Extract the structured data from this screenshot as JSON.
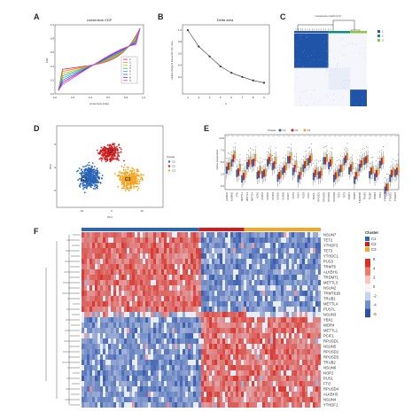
{
  "panels": {
    "A": {
      "letter": "A",
      "title": "consensus CDF",
      "xlabel": "consensus index",
      "ylabel": "CDF",
      "ticks_x": [
        "0.0",
        "0.2",
        "0.4",
        "0.6",
        "0.8",
        "1.0"
      ],
      "ticks_y": [
        "0.0",
        "0.2",
        "0.4",
        "0.6",
        "0.8",
        "1.0"
      ],
      "legend": [
        "2",
        "3",
        "4",
        "5",
        "6",
        "7",
        "8",
        "9"
      ],
      "colors": [
        "#e6194b",
        "#f58231",
        "#bcbd22",
        "#3cb44b",
        "#17becf",
        "#4363d8",
        "#911eb4",
        "#f032e6"
      ]
    },
    "B": {
      "letter": "B",
      "title": "Delta area",
      "xlabel": "k",
      "ylabel": "relative change in area under CDF curve",
      "ticks_x": [
        "2",
        "3",
        "4",
        "5",
        "6",
        "7",
        "8",
        "9"
      ],
      "ticks_y": [
        "0.2",
        "0.4",
        "0.6",
        "0.8",
        "1.0"
      ]
    },
    "C": {
      "letter": "C",
      "title": "consensus matrix k=3",
      "legend": [
        "1",
        "2",
        "3"
      ],
      "colors": [
        "#2457a6",
        "#0e8f7e",
        "#8cc63f"
      ]
    },
    "D": {
      "letter": "D",
      "xlabel": "PC1",
      "ylabel": "PC2",
      "legend_title": "Cluster",
      "legend": [
        "C1",
        "C2",
        "C3"
      ],
      "colors": [
        "#2a65b7",
        "#d7191c",
        "#f5a623"
      ],
      "cluster_labels": [
        "C2",
        "C1",
        "C3"
      ],
      "ticks_x": [
        "-10",
        "0",
        "10"
      ],
      "ticks_y": [
        "-5",
        "0",
        "5"
      ]
    },
    "E": {
      "letter": "E",
      "legend_title": "Cluster",
      "legend": [
        "C1",
        "C2",
        "C3"
      ],
      "ylabel": "Gene expression",
      "ticks_y": [
        "0.0",
        "2.5",
        "5.0",
        "7.5",
        "10.0"
      ],
      "genes": [
        "ALKBH1",
        "ALKBH3",
        "FTO",
        "METTL1",
        "METTL3",
        "METTL4",
        "NOP2",
        "NSUN2",
        "NSUN3",
        "NSUN4",
        "NSUN5",
        "NSUN6",
        "NSUN7",
        "PCIF1",
        "PUS1",
        "PUS3",
        "PUS7",
        "PUS7L",
        "RPUSD1",
        "RPUSD2",
        "RPUSD3",
        "RPUSD4",
        "TET2",
        "TET3",
        "TRMT1",
        "TRMT6",
        "TRMT61B",
        "TRUB1",
        "TRUB2",
        "WDR4",
        "YBX1",
        "YTHDC1",
        "YTHDF1",
        "YTHDF3"
      ]
    },
    "F": {
      "letter": "F",
      "legend_title": "Cluster",
      "legend": [
        "C1",
        "C2",
        "C3"
      ],
      "colors": [
        "#2a65b7",
        "#d7191c",
        "#f5a623"
      ],
      "scale": [
        "6",
        "4",
        "2",
        "0",
        "-2",
        "-4",
        "-6"
      ],
      "genes": [
        "NSUN7",
        "TET2",
        "YTHDF3",
        "TET3",
        "YTHDC1",
        "PUS3",
        "TRMT6",
        "ALKBH1",
        "TRDMT1",
        "METTL3",
        "NSUN2",
        "TRMT61B",
        "TRUB1",
        "METTL4",
        "PUS7L",
        "NSUN3",
        "YBX1",
        "WDR4",
        "METTL1",
        "PCIF1",
        "RPUSD1",
        "NSUN5",
        "RPUSD2",
        "RPUSD3",
        "TRUB2",
        "NSUN6",
        "NOP2",
        "PUS1",
        "FTO",
        "RPUSD4",
        "ALKBH3",
        "NSUN4",
        "YTHDF1"
      ]
    }
  }
}
